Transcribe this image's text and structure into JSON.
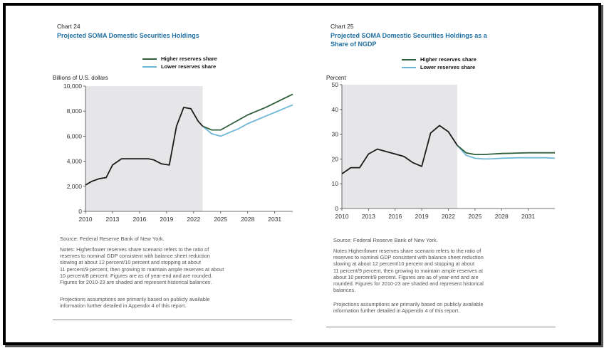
{
  "chart_data": [
    {
      "type": "line",
      "chart_number": "Chart 24",
      "title": "Projected SOMA Domestic Securities Holdings",
      "ylabel": "Billions of U.S. dollars",
      "xlabel": "",
      "xlim": [
        2010,
        2033
      ],
      "ylim": [
        0,
        10000
      ],
      "x_ticks": [
        "2010",
        "2013",
        "2016",
        "2019",
        "2022",
        "2025",
        "2028",
        "2031"
      ],
      "x_tick_values": [
        2010,
        2013,
        2016,
        2019,
        2022,
        2025,
        2028,
        2031
      ],
      "y_ticks": [
        "0",
        "2,000",
        "4,000",
        "6,000",
        "8,000",
        "10,000"
      ],
      "y_tick_values": [
        0,
        2000,
        4000,
        6000,
        8000,
        10000
      ],
      "shaded_region": [
        2010,
        2023
      ],
      "grid": false,
      "legend_position": "top",
      "historical": {
        "x": [
          2010,
          2010.7,
          2011.5,
          2012.3,
          2013,
          2014,
          2015,
          2016,
          2017,
          2017.6,
          2018.4,
          2019.3,
          2020.1,
          2020.9,
          2021.7,
          2022.5,
          2023
        ],
        "y": [
          2100,
          2400,
          2600,
          2700,
          3700,
          4200,
          4200,
          4200,
          4200,
          4100,
          3800,
          3700,
          6800,
          8300,
          8200,
          7200,
          6800
        ]
      },
      "series": [
        {
          "name": "Higher reserves share",
          "color": "#2e5e3a",
          "x": [
            2023,
            2024,
            2025,
            2026,
            2027,
            2028,
            2029,
            2030,
            2031,
            2032,
            2033
          ],
          "y": [
            6800,
            6500,
            6500,
            6900,
            7300,
            7700,
            8000,
            8300,
            8650,
            9000,
            9350
          ]
        },
        {
          "name": "Lower reserves share",
          "color": "#6fb7d6",
          "x": [
            2023,
            2024,
            2025,
            2026,
            2027,
            2028,
            2029,
            2030,
            2031,
            2032,
            2033
          ],
          "y": [
            6800,
            6200,
            6000,
            6300,
            6600,
            7000,
            7300,
            7600,
            7900,
            8200,
            8500
          ]
        }
      ],
      "historical_color": "#1a1a1a",
      "source": "Source: Federal Reserve Bank of New York.",
      "notes": [
        "Notes: Higher/lower reserves share scenario refers to the ratio of",
        "reserves to nominal GDP consistent with balance sheet reduction",
        "slowing at about 12 percent/10 percent and stopping at about",
        "11 percent/9 percent, then growing to maintain ample reserves at about",
        "10 percent/8 percent. Figures are as of year-end and are rounded.",
        "Figures for 2010-23 are shaded and represent historical balances."
      ],
      "projections_note": [
        "Projections assumptions are primarily based on publicly available",
        "information further detailed in Appendix 4 of this report."
      ]
    },
    {
      "type": "line",
      "chart_number": "Chart 25",
      "title": "Projected SOMA Domestic Securities Holdings as a Share of NGDP",
      "title_lines": [
        "Projected SOMA Domestic Securities Holdings as a",
        "Share of NGDP"
      ],
      "ylabel": "Percent",
      "xlabel": "",
      "xlim": [
        2010,
        2034
      ],
      "ylim": [
        0,
        50
      ],
      "x_ticks": [
        "2010",
        "2013",
        "2016",
        "2019",
        "2022",
        "2025",
        "2028",
        "2031"
      ],
      "x_tick_values": [
        2010,
        2013,
        2016,
        2019,
        2022,
        2025,
        2028,
        2031
      ],
      "y_ticks": [
        "0",
        "10",
        "20",
        "30",
        "40",
        "50"
      ],
      "y_tick_values": [
        0,
        10,
        20,
        30,
        40,
        50
      ],
      "shaded_region": [
        2010,
        2023
      ],
      "grid": false,
      "legend_position": "top",
      "historical": {
        "x": [
          2010,
          2011,
          2012,
          2013,
          2014,
          2015,
          2016,
          2017,
          2018,
          2019,
          2020,
          2021,
          2022,
          2023
        ],
        "y": [
          14,
          16.5,
          16.5,
          22,
          24,
          23,
          22,
          21,
          18.5,
          17,
          30.5,
          33.5,
          31,
          25.5
        ]
      },
      "series": [
        {
          "name": "Higher reserves share",
          "color": "#2e5e3a",
          "x": [
            2023,
            2024,
            2025,
            2026,
            2027,
            2028,
            2029,
            2030,
            2031,
            2032,
            2033,
            2034
          ],
          "y": [
            25.5,
            22.5,
            21.8,
            21.8,
            22,
            22.2,
            22.3,
            22.4,
            22.5,
            22.5,
            22.5,
            22.5
          ]
        },
        {
          "name": "Lower reserves share",
          "color": "#6fb7d6",
          "x": [
            2023,
            2024,
            2025,
            2026,
            2027,
            2028,
            2029,
            2030,
            2031,
            2032,
            2033,
            2034
          ],
          "y": [
            25.5,
            21.5,
            20.3,
            20.0,
            20.1,
            20.3,
            20.4,
            20.5,
            20.5,
            20.5,
            20.5,
            20.3
          ]
        }
      ],
      "historical_color": "#1a1a1a",
      "source": "Source: Federal Reserve Bank of New York.",
      "notes": [
        "Notes Higher/lower reserves share scenario refers to the ratio of",
        "reserves to nominal GDP consistent with balance sheet reduction",
        "slowing at about 12 percent/10 percent and stopping at about",
        "11 percent/9 percent, then growing to maintain ample reserves at",
        "about 10 percent/8 percent. Figures are as of year-end and are",
        "rounded. Figures for 2010-23 are shaded and represent historical",
        "balances."
      ],
      "projections_note": [
        "Projections assumptions are primarily based on publicly available",
        "information further detailed in Appendix 4 of this report."
      ]
    }
  ]
}
